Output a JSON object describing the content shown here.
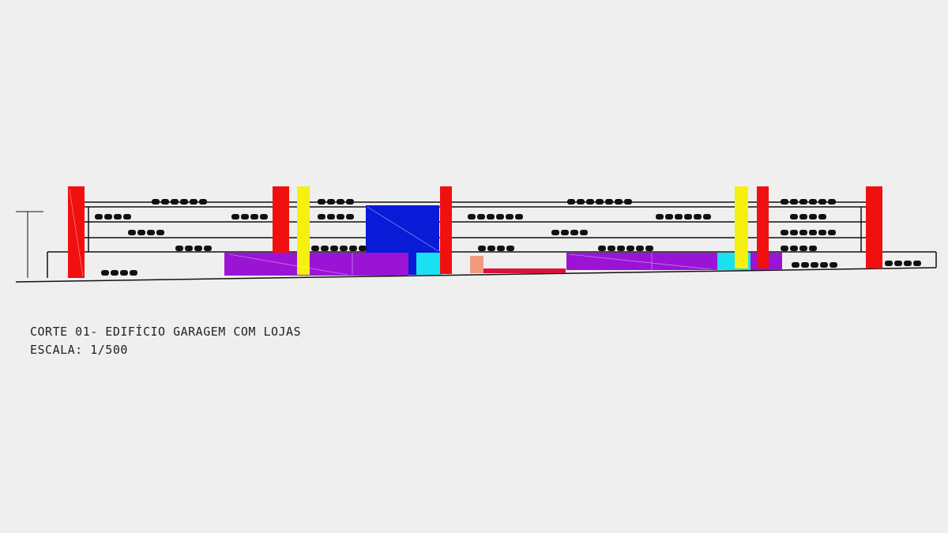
{
  "caption": {
    "title": "CORTE 01- EDIFÍCIO GARAGEM COM LOJAS",
    "scale": "ESCALA: 1/500"
  }
}
